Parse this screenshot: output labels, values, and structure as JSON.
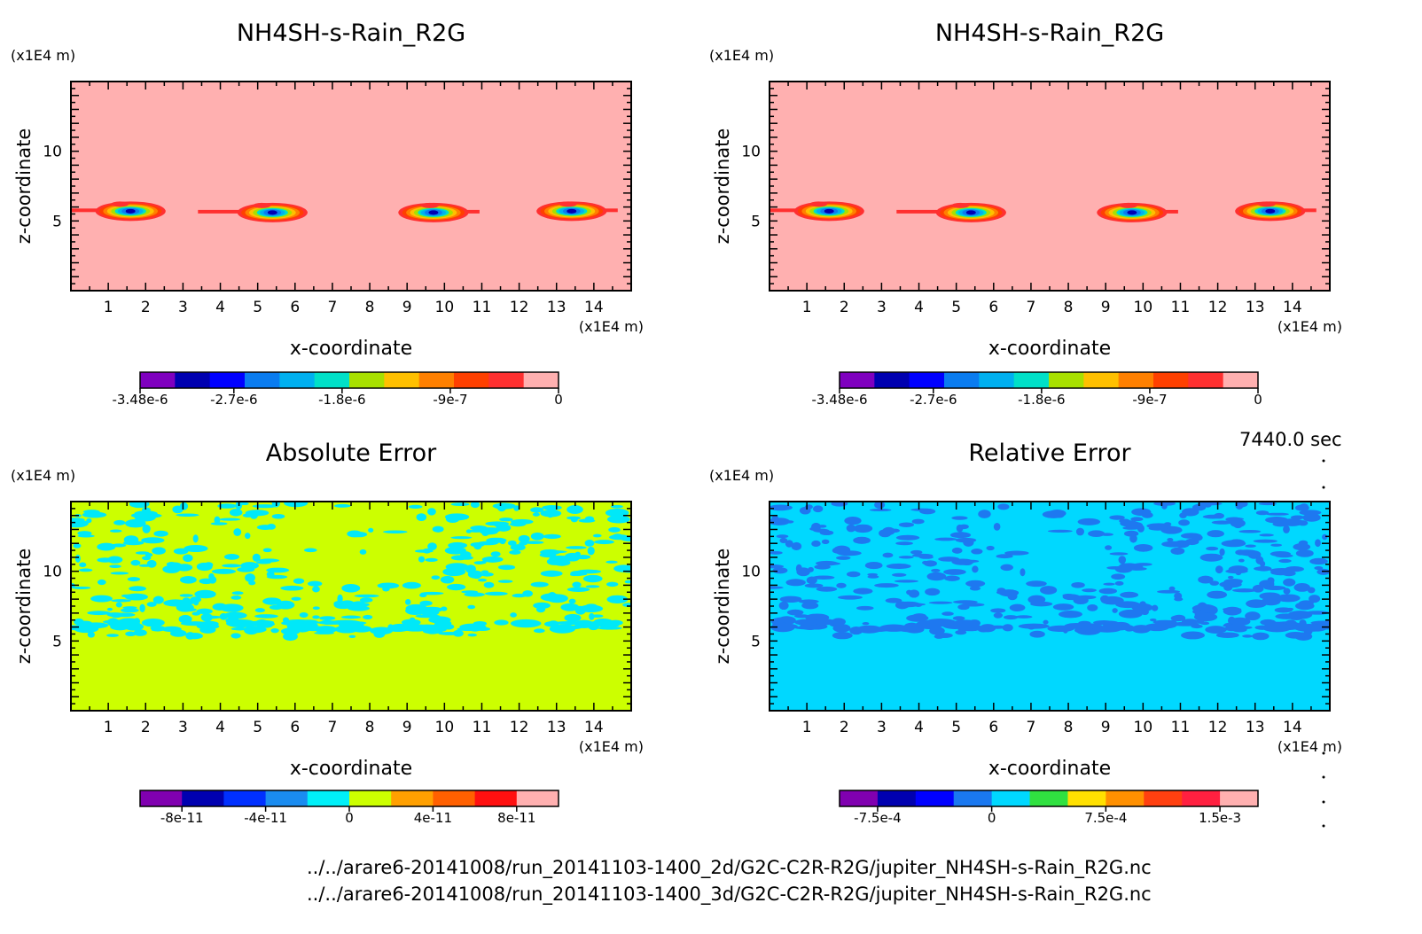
{
  "time_label": "7440.0 sec",
  "file_lines": [
    "../../arare6-20141008/run_20141103-1400_2d/G2C-C2R-R2G/jupiter_NH4SH-s-Rain_R2G.nc",
    "../../arare6-20141008/run_20141103-1400_3d/G2C-C2R-R2G/jupiter_NH4SH-s-Rain_R2G.nc"
  ],
  "colors": {
    "palette_main": [
      "#7f00bf",
      "#0000b0",
      "#0000ff",
      "#0a7cf0",
      "#00b0f0",
      "#00e0c8",
      "#a8e000",
      "#ffc000",
      "#ff8000",
      "#ff4000",
      "#ff3030",
      "#ffb0b0"
    ],
    "abs_fill": "#ccff00",
    "abs_patch": "#00e8f8",
    "rel_fill": "#00d8ff",
    "rel_patch": "#1e78f0"
  },
  "chart_data": [
    {
      "type": "heatmap",
      "title": "NH4SH-s-Rain_R2G",
      "xlabel": "x-coordinate",
      "ylabel": "z-coordinate",
      "x_unit": "(x1E4 m)",
      "y_unit": "(x1E4 m)",
      "xlim": [
        0,
        15
      ],
      "ylim": [
        0,
        15
      ],
      "xticks": [
        "1",
        "2",
        "3",
        "4",
        "5",
        "6",
        "7",
        "8",
        "9",
        "10",
        "11",
        "12",
        "13",
        "14"
      ],
      "yticks": [
        "5",
        "10"
      ],
      "colorbar": {
        "ticks": [
          "-3.48e-6",
          "-2.7e-6",
          "-1.8e-6",
          "-9e-7",
          "0"
        ],
        "range": [
          -3.48e-06,
          0
        ]
      },
      "features": [
        {
          "x_center": 1.5,
          "z": 5.7
        },
        {
          "x_center": 5.3,
          "z": 5.6
        },
        {
          "x_center": 9.8,
          "z": 5.6
        },
        {
          "x_center": 13.5,
          "z": 5.7
        }
      ]
    },
    {
      "type": "heatmap",
      "title": "NH4SH-s-Rain_R2G",
      "xlabel": "x-coordinate",
      "ylabel": "z-coordinate",
      "x_unit": "(x1E4 m)",
      "y_unit": "(x1E4 m)",
      "xlim": [
        0,
        15
      ],
      "ylim": [
        0,
        15
      ],
      "xticks": [
        "1",
        "2",
        "3",
        "4",
        "5",
        "6",
        "7",
        "8",
        "9",
        "10",
        "11",
        "12",
        "13",
        "14"
      ],
      "yticks": [
        "5",
        "10"
      ],
      "colorbar": {
        "ticks": [
          "-3.48e-6",
          "-2.7e-6",
          "-1.8e-6",
          "-9e-7",
          "0"
        ],
        "range": [
          -3.48e-06,
          0
        ]
      },
      "features": [
        {
          "x_center": 1.5,
          "z": 5.7
        },
        {
          "x_center": 5.3,
          "z": 5.6
        },
        {
          "x_center": 9.8,
          "z": 5.6
        },
        {
          "x_center": 13.5,
          "z": 5.7
        }
      ]
    },
    {
      "type": "heatmap",
      "title": "Absolute Error",
      "xlabel": "x-coordinate",
      "ylabel": "z-coordinate",
      "x_unit": "(x1E4 m)",
      "y_unit": "(x1E4 m)",
      "xlim": [
        0,
        15
      ],
      "ylim": [
        0,
        15
      ],
      "xticks": [
        "1",
        "2",
        "3",
        "4",
        "5",
        "6",
        "7",
        "8",
        "9",
        "10",
        "11",
        "12",
        "13",
        "14"
      ],
      "yticks": [
        "5",
        "10"
      ],
      "colorbar": {
        "ticks": [
          "-8e-11",
          "-4e-11",
          "0",
          "4e-11",
          "8e-11"
        ],
        "range": [
          -1e-10,
          1e-10
        ],
        "colors": [
          "#8000b0",
          "#0000b0",
          "#0030ff",
          "#1a8cf0",
          "#00f0f8",
          "#ccff00",
          "#ffa000",
          "#ff6000",
          "#ff1010",
          "#ffb0b0"
        ]
      }
    },
    {
      "type": "heatmap",
      "title": "Relative Error",
      "xlabel": "x-coordinate",
      "ylabel": "z-coordinate",
      "x_unit": "(x1E4 m)",
      "y_unit": "(x1E4 m)",
      "xlim": [
        0,
        15
      ],
      "ylim": [
        0,
        15
      ],
      "xticks": [
        "1",
        "2",
        "3",
        "4",
        "5",
        "6",
        "7",
        "8",
        "9",
        "10",
        "11",
        "12",
        "13",
        "14"
      ],
      "yticks": [
        "5",
        "10"
      ],
      "colorbar": {
        "ticks": [
          "-7.5e-4",
          "0",
          "7.5e-4",
          "1.5e-3"
        ],
        "range": [
          -0.001,
          0.00175
        ],
        "colors": [
          "#8000b0",
          "#0000b0",
          "#0000ff",
          "#1a78f0",
          "#00d8ff",
          "#30e040",
          "#ffe000",
          "#ff9000",
          "#ff4010",
          "#ff2040",
          "#ffb0b0"
        ]
      }
    }
  ]
}
